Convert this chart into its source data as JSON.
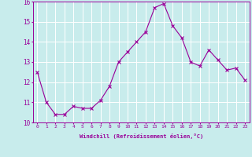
{
  "x": [
    0,
    1,
    2,
    3,
    4,
    5,
    6,
    7,
    8,
    9,
    10,
    11,
    12,
    13,
    14,
    15,
    16,
    17,
    18,
    19,
    20,
    21,
    22,
    23
  ],
  "y": [
    12.5,
    11.0,
    10.4,
    10.4,
    10.8,
    10.7,
    10.7,
    11.1,
    11.8,
    13.0,
    13.5,
    14.0,
    14.5,
    15.7,
    15.9,
    14.8,
    14.2,
    13.0,
    12.8,
    13.6,
    13.1,
    12.6,
    12.7,
    12.1
  ],
  "line_color": "#990099",
  "marker": "x",
  "marker_color": "#990099",
  "bg_color": "#c8ecec",
  "grid_color": "#ffffff",
  "xlabel": "Windchill (Refroidissement éolien,°C)",
  "xlabel_color": "#990099",
  "tick_color": "#990099",
  "ylim": [
    10,
    16
  ],
  "xlim": [
    -0.5,
    23.5
  ],
  "yticks": [
    10,
    11,
    12,
    13,
    14,
    15,
    16
  ],
  "xticks": [
    0,
    1,
    2,
    3,
    4,
    5,
    6,
    7,
    8,
    9,
    10,
    11,
    12,
    13,
    14,
    15,
    16,
    17,
    18,
    19,
    20,
    21,
    22,
    23
  ],
  "xtick_labels": [
    "0",
    "1",
    "2",
    "3",
    "4",
    "5",
    "6",
    "7",
    "8",
    "9",
    "10",
    "11",
    "12",
    "13",
    "14",
    "15",
    "16",
    "17",
    "18",
    "19",
    "20",
    "21",
    "22",
    "23"
  ]
}
